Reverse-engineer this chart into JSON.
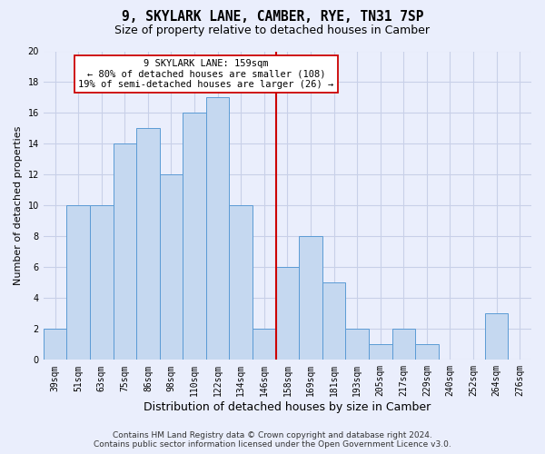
{
  "title": "9, SKYLARK LANE, CAMBER, RYE, TN31 7SP",
  "subtitle": "Size of property relative to detached houses in Camber",
  "xlabel": "Distribution of detached houses by size in Camber",
  "ylabel": "Number of detached properties",
  "categories": [
    "39sqm",
    "51sqm",
    "63sqm",
    "75sqm",
    "86sqm",
    "98sqm",
    "110sqm",
    "122sqm",
    "134sqm",
    "146sqm",
    "158sqm",
    "169sqm",
    "181sqm",
    "193sqm",
    "205sqm",
    "217sqm",
    "229sqm",
    "240sqm",
    "252sqm",
    "264sqm",
    "276sqm"
  ],
  "values": [
    2,
    10,
    10,
    14,
    15,
    12,
    16,
    17,
    10,
    2,
    6,
    8,
    5,
    2,
    1,
    2,
    1,
    0,
    0,
    3,
    0
  ],
  "bar_color": "#c5d8f0",
  "bar_edge_color": "#5b9bd5",
  "vline_index": 9.5,
  "annotation_line1": "9 SKYLARK LANE: 159sqm",
  "annotation_line2": "← 80% of detached houses are smaller (108)",
  "annotation_line3": "19% of semi-detached houses are larger (26) →",
  "annotation_box_color": "#ffffff",
  "annotation_box_edge": "#cc0000",
  "vline_color": "#cc0000",
  "ylim_max": 20,
  "yticks": [
    0,
    2,
    4,
    6,
    8,
    10,
    12,
    14,
    16,
    18,
    20
  ],
  "grid_color": "#c8d0e8",
  "background_color": "#eaeefc",
  "footer_line1": "Contains HM Land Registry data © Crown copyright and database right 2024.",
  "footer_line2": "Contains public sector information licensed under the Open Government Licence v3.0.",
  "title_fontsize": 10.5,
  "subtitle_fontsize": 9,
  "ylabel_fontsize": 8,
  "xlabel_fontsize": 9,
  "tick_fontsize": 7,
  "annot_fontsize": 7.5,
  "footer_fontsize": 6.5
}
